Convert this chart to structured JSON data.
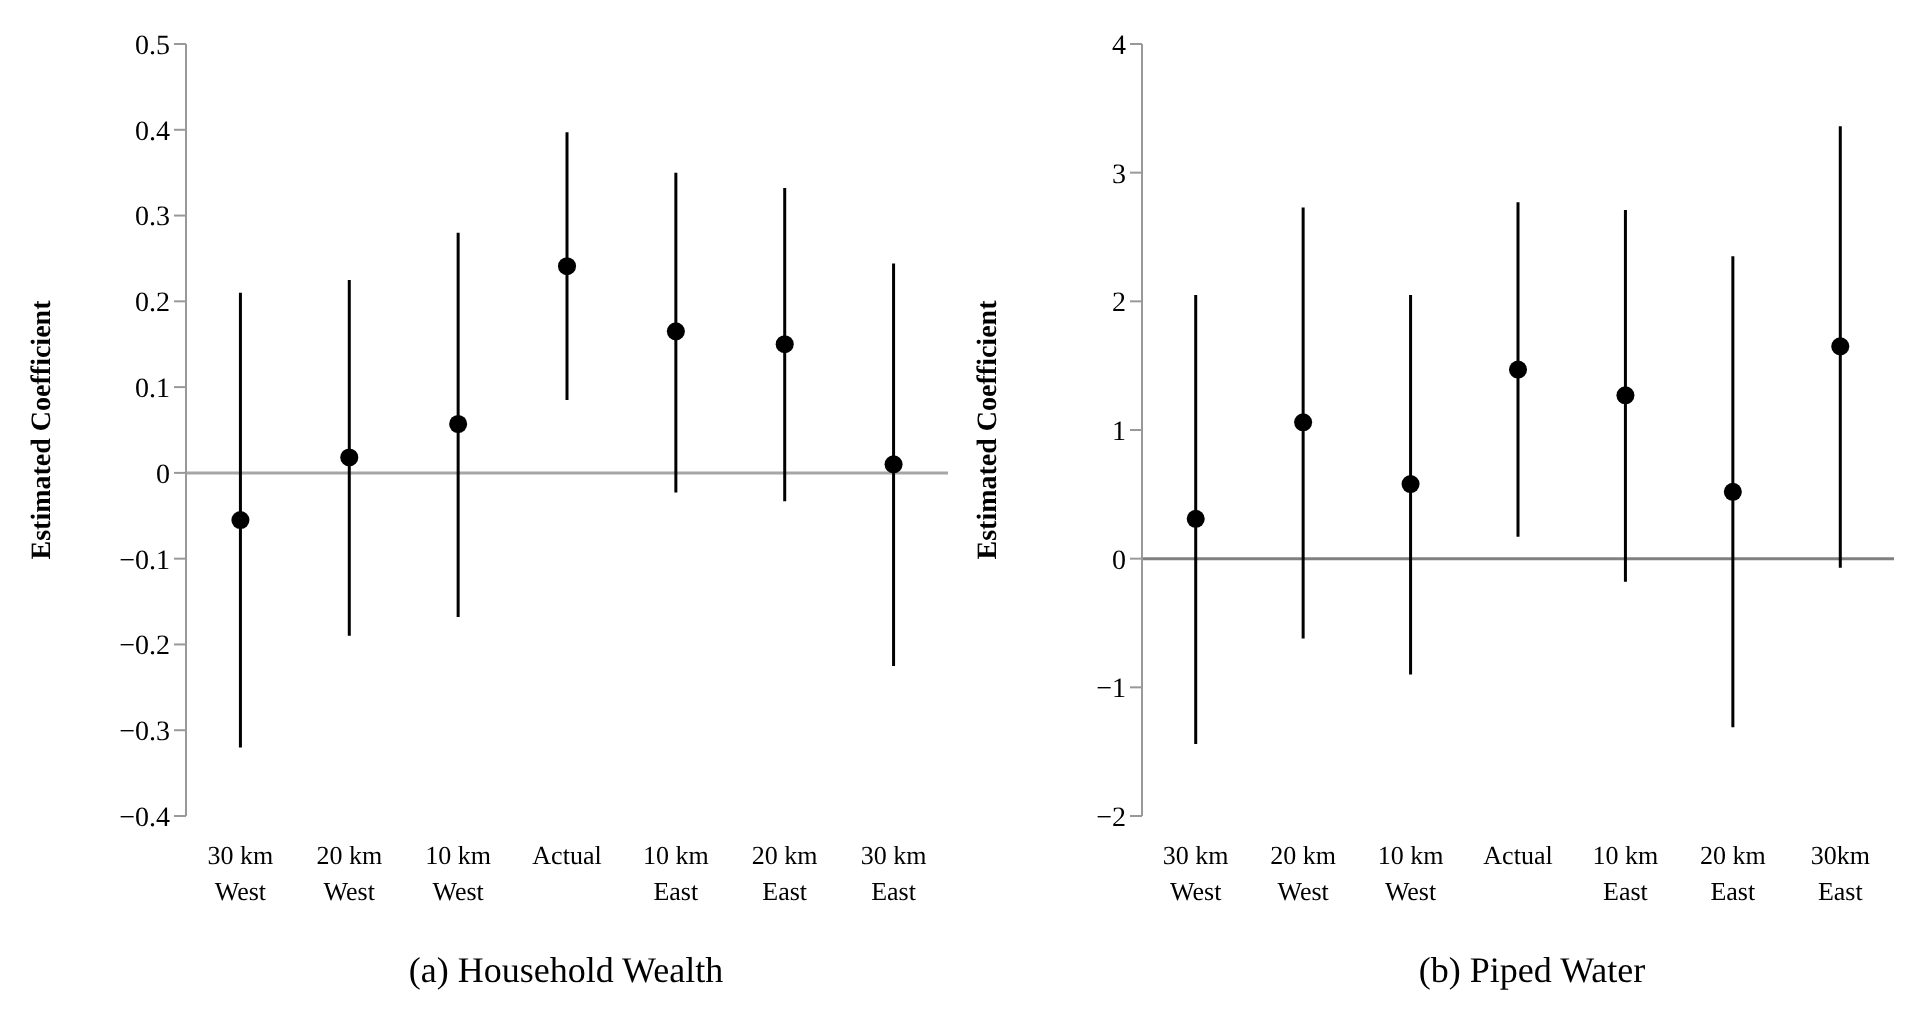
{
  "chart_data": [
    {
      "type": "scatter",
      "title": "(a) Household Wealth",
      "ylabel": "Estimated Coefficient",
      "categories": [
        "30 km\nWest",
        "20 km\nWest",
        "10 km\nWest",
        "Actual",
        "10 km\nEast",
        "20 km\nEast",
        "30 km\nEast"
      ],
      "series": [
        {
          "color": "#000000",
          "values": [
            -0.055,
            0.018,
            0.057,
            0.241,
            0.165,
            0.15,
            0.01
          ],
          "errors": [
            [
              -0.32,
              0.21
            ],
            [
              -0.19,
              0.225
            ],
            [
              -0.168,
              0.28
            ],
            [
              0.085,
              0.397
            ],
            [
              -0.023,
              0.35
            ],
            [
              -0.033,
              0.332
            ],
            [
              -0.225,
              0.244
            ]
          ]
        }
      ],
      "ylim": [
        -0.4,
        0.5
      ],
      "yticks": [
        {
          "value": -0.4,
          "label": "−0.4"
        },
        {
          "value": -0.3,
          "label": "−0.3"
        },
        {
          "value": -0.2,
          "label": "−0.2"
        },
        {
          "value": -0.1,
          "label": "−0.1"
        },
        0,
        0.1,
        0.2,
        0.3,
        0.4,
        0.5
      ],
      "ref_lines": [
        {
          "axis": "y",
          "value": 0,
          "color": "#a6a6a6"
        }
      ],
      "marker": "circle",
      "grid": false,
      "legend": false
    },
    {
      "type": "scatter",
      "title": "(b) Piped Water",
      "ylabel": "Estimated Coefficient",
      "categories": [
        "30 km\nWest",
        "20 km\nWest",
        "10 km\nWest",
        "Actual",
        "10 km\nEast",
        "20 km\nEast",
        "30km\nEast"
      ],
      "series": [
        {
          "color": "#000000",
          "values": [
            0.31,
            1.06,
            0.58,
            1.47,
            1.27,
            0.52,
            1.65
          ],
          "errors": [
            [
              -1.44,
              2.05
            ],
            [
              -0.62,
              2.73
            ],
            [
              -0.9,
              2.05
            ],
            [
              0.17,
              2.77
            ],
            [
              -0.18,
              2.71
            ],
            [
              -1.31,
              2.35
            ],
            [
              -0.07,
              3.36
            ]
          ]
        }
      ],
      "ylim": [
        -2,
        4
      ],
      "yticks": [
        {
          "value": -2,
          "label": "−2"
        },
        {
          "value": -1,
          "label": "−1"
        },
        0,
        1,
        2,
        3,
        4
      ],
      "ref_lines": [
        {
          "axis": "y",
          "value": 0,
          "color": "#808080"
        }
      ],
      "marker": "circle",
      "grid": false,
      "legend": false
    }
  ]
}
